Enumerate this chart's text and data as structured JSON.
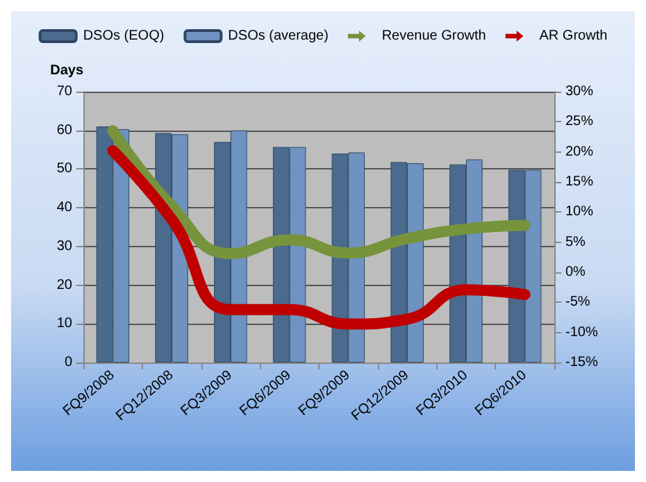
{
  "chart_data": {
    "type": "bar",
    "ylabel": "Days",
    "categories": [
      "FQ9/2008",
      "FQ12/2008",
      "FQ3/2009",
      "FQ6/2009",
      "FQ9/2009",
      "FQ12/2009",
      "FQ3/2010",
      "FQ6/2010"
    ],
    "series": [
      {
        "name": "DSOs (EOQ)",
        "color": "#4a6a8e",
        "values": [
          61,
          59.3,
          57,
          55.7,
          54,
          51.8,
          51.2,
          49.8
        ]
      },
      {
        "name": "DSOs (average)",
        "color": "#6e93c0",
        "values": [
          60.3,
          59,
          60,
          55.7,
          54.3,
          51.5,
          52.5,
          49.8
        ]
      },
      {
        "name": "Revenue Growth",
        "type": "line",
        "axis": "y2",
        "color": "#77933c",
        "values": [
          23.5,
          11,
          3.1,
          5.4,
          3.2,
          5.6,
          7.2,
          7.8
        ]
      },
      {
        "name": "AR Growth",
        "type": "line",
        "axis": "y2",
        "color": "#c00000",
        "values": [
          20.2,
          8.8,
          -6.2,
          -6.2,
          -8.6,
          -7.8,
          -2.9,
          -3.7
        ]
      }
    ],
    "ylim": [
      0,
      70
    ],
    "yticks": [
      0,
      10,
      20,
      30,
      40,
      50,
      60,
      70
    ],
    "y2lim": [
      -15,
      30
    ],
    "y2ticks": [
      {
        "value": -15,
        "label": "-15%"
      },
      {
        "value": -10,
        "label": "-10%"
      },
      {
        "value": -5,
        "label": "-5%"
      },
      {
        "value": 0,
        "label": "0%"
      },
      {
        "value": 5,
        "label": "5%"
      },
      {
        "value": 10,
        "label": "10%"
      },
      {
        "value": 15,
        "label": "15%"
      },
      {
        "value": 20,
        "label": "20%"
      },
      {
        "value": 25,
        "label": "25%"
      },
      {
        "value": 30,
        "label": "30%"
      }
    ],
    "grid": "y",
    "legend": "top",
    "marker": "none"
  }
}
